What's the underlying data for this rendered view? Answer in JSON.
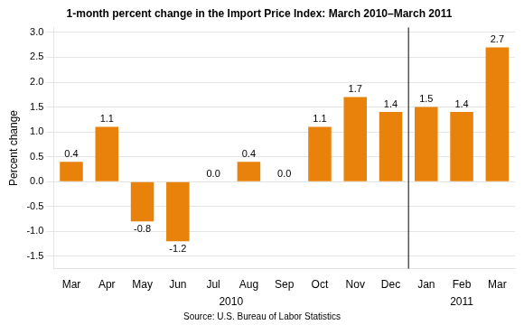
{
  "chart_data": {
    "type": "bar",
    "title": "1-month percent change in the Import Price Index: March 2010–March 2011",
    "categories": [
      "Mar",
      "Apr",
      "May",
      "Jun",
      "Jul",
      "Aug",
      "Sep",
      "Oct",
      "Nov",
      "Dec",
      "Jan",
      "Feb",
      "Mar"
    ],
    "values": [
      0.4,
      1.1,
      -0.8,
      -1.2,
      0.0,
      0.4,
      0.0,
      1.1,
      1.7,
      1.4,
      1.5,
      1.4,
      2.7
    ],
    "value_labels": [
      "0.4",
      "1.1",
      "-0.8",
      "-1.2",
      "0.0",
      "0.4",
      "0.0",
      "1.1",
      "1.7",
      "1.4",
      "1.5",
      "1.4",
      "2.7"
    ],
    "data_labels": true,
    "color": "#E8820A",
    "ylabel": "Percent change",
    "ylim": [
      -1.75,
      3.1
    ],
    "yticks": [
      -1.5,
      {
        "value": -1.0,
        "label": "-1.0"
      },
      -0.5,
      {
        "value": 0.0,
        "label": "0.0"
      },
      0.5,
      {
        "value": 1.0,
        "label": "1.0"
      },
      1.5,
      {
        "value": 2.0,
        "label": "2.0"
      },
      2.5,
      {
        "value": 3.0,
        "label": "3.0"
      }
    ],
    "grid": true,
    "groups": [
      {
        "label": "2010",
        "size": 10
      },
      {
        "label": "2011",
        "size": 3
      }
    ],
    "source": "Source: U.S. Bureau of Labor Statistics"
  }
}
